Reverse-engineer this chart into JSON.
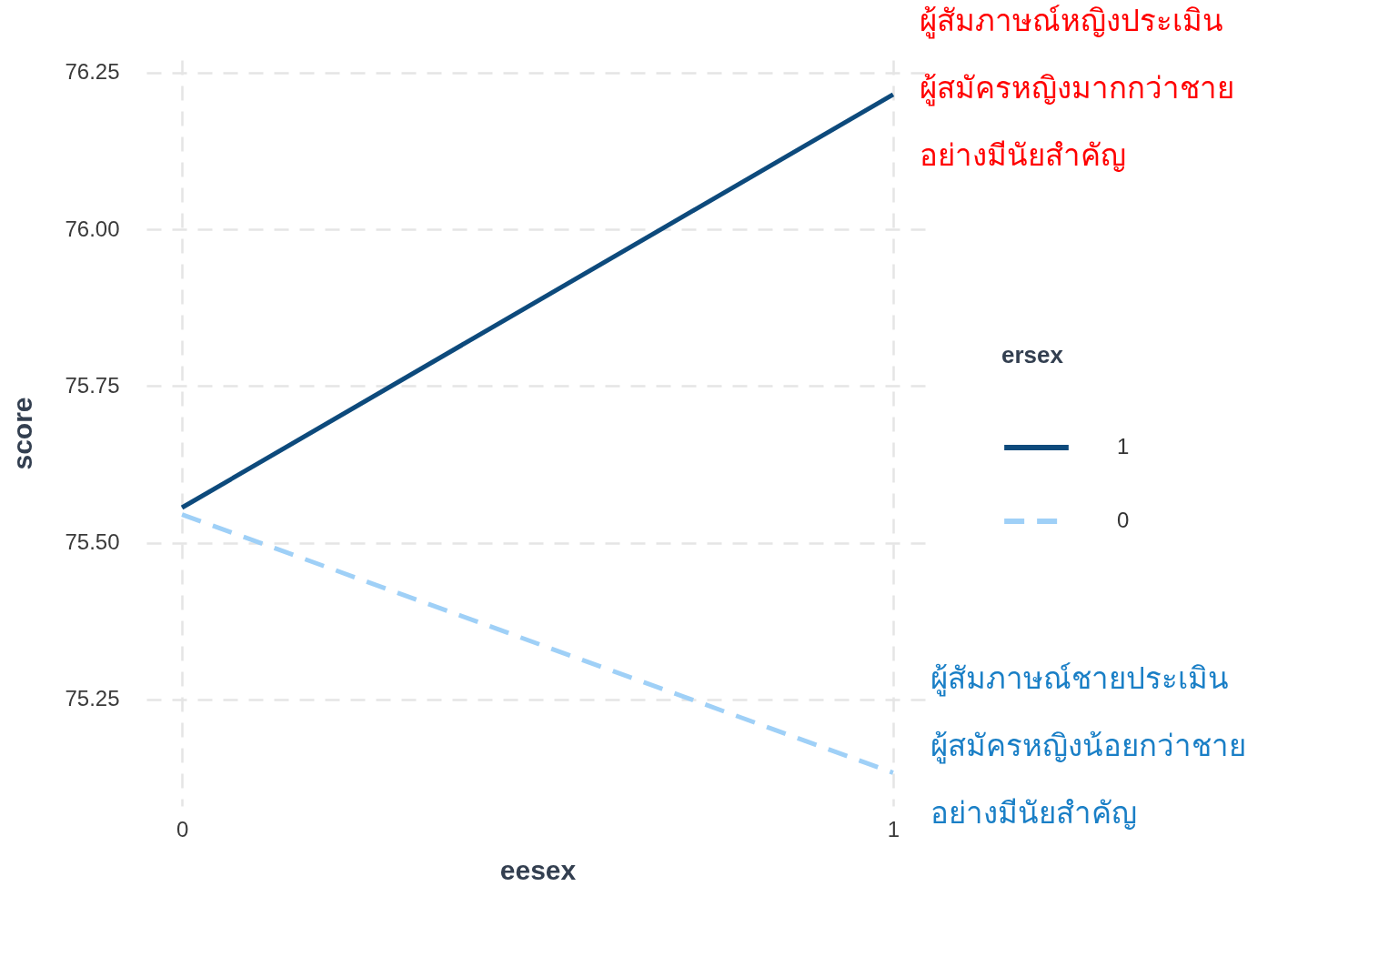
{
  "chart_data": {
    "type": "line",
    "xlabel": "eesex",
    "ylabel": "score",
    "legend_title": "ersex",
    "x": [
      0,
      1
    ],
    "series": [
      {
        "name": "1",
        "color": "#0d4a7c",
        "line_style": "solid",
        "values": [
          75.556,
          76.215
        ]
      },
      {
        "name": "0",
        "color": "#9fd0f7",
        "line_style": "dashed",
        "values": [
          75.545,
          75.133
        ]
      }
    ],
    "xlim": [
      -0.05,
      1.05
    ],
    "xticks": [
      0,
      1
    ],
    "ylim": [
      75.08,
      76.27
    ],
    "yticks": [
      {
        "value": 75.25,
        "label": "75.25"
      },
      {
        "value": 75.5,
        "label": "75.50"
      },
      {
        "value": 75.75,
        "label": "75.75"
      },
      {
        "value": 76,
        "label": "76.00"
      },
      {
        "value": 76.25,
        "label": "76.25"
      }
    ],
    "grid": true,
    "legend": "right",
    "marker": "none",
    "annotations": [
      "ผู้สัมภาษณ์หญิงประเมิน\nผู้สมัครหญิงมากกว่าชาย\nอย่างมีนัยสำคัญ",
      "ผู้สัมภาษณ์ชายประเมิน\nผู้สมัครหญิงน้อยกว่าชาย\nอย่างมีนัยสำคัญ"
    ]
  }
}
